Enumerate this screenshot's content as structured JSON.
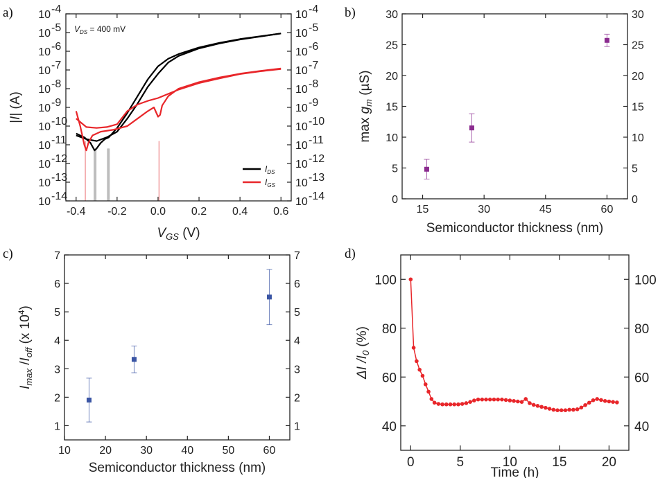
{
  "colors": {
    "ids": "#000000",
    "igs": "#e8262a",
    "gm": "#8b2b8f",
    "ratio": "#3a55a4",
    "decay": "#e8262a",
    "error_gray": "#bdbdbd",
    "error_pink": "#f2a3a5"
  },
  "chart_data": [
    {
      "panel": "a)",
      "type": "line",
      "annotation": {
        "main": "V",
        "sub": "DS",
        "rest": " = 400 mV"
      },
      "xlabel": {
        "main": "V",
        "sub": "GS",
        "rest": " (V)"
      },
      "ylabel": {
        "pre": "|",
        "main": "I",
        "post": "| (A)"
      },
      "xlim": [
        -0.45,
        0.65
      ],
      "ylim": [
        -14,
        -4
      ],
      "yscale": "log",
      "xticks": [
        "-0.4",
        "-0.2",
        "0.0",
        "0.2",
        "0.4",
        "0.6"
      ],
      "xtick_values": [
        -0.4,
        -0.2,
        0.0,
        0.2,
        0.4,
        0.6
      ],
      "ytick_mantissa": "10",
      "ytick_exponents": [
        "-4",
        "-5",
        "-6",
        "-7",
        "-8",
        "-9",
        "-10",
        "-11",
        "-12",
        "-13",
        "-14"
      ],
      "ytick_values": [
        -4,
        -5,
        -6,
        -7,
        -8,
        -9,
        -10,
        -11,
        -12,
        -13,
        -14
      ],
      "legend": {
        "position": "bottom-right",
        "entries": [
          {
            "main": "I",
            "sub": "DS"
          },
          {
            "main": "I",
            "sub": "GS"
          }
        ]
      },
      "series": [
        {
          "name": "I_DS (forward)",
          "x": [
            -0.4,
            -0.36,
            -0.33,
            -0.31,
            -0.3,
            -0.28,
            -0.26,
            -0.24,
            -0.2,
            -0.15,
            -0.1,
            -0.05,
            0.0,
            0.05,
            0.1,
            0.2,
            0.3,
            0.4,
            0.5,
            0.6
          ],
          "y": [
            -10.4,
            -10.6,
            -10.9,
            -11.3,
            -11.2,
            -10.9,
            -10.7,
            -10.6,
            -10.1,
            -9.3,
            -8.4,
            -7.5,
            -6.8,
            -6.4,
            -6.15,
            -5.8,
            -5.55,
            -5.35,
            -5.2,
            -5.05
          ]
        },
        {
          "name": "I_DS (reverse)",
          "x": [
            -0.4,
            -0.35,
            -0.3,
            -0.25,
            -0.2,
            -0.15,
            -0.1,
            -0.05,
            0.0,
            0.05,
            0.1,
            0.2,
            0.3,
            0.4,
            0.5,
            0.6
          ],
          "y": [
            -10.5,
            -10.7,
            -10.8,
            -10.6,
            -10.3,
            -9.6,
            -8.8,
            -7.9,
            -7.2,
            -6.6,
            -6.25,
            -5.85,
            -5.58,
            -5.37,
            -5.21,
            -5.05
          ]
        },
        {
          "name": "I_GS (forward)",
          "x": [
            -0.4,
            -0.38,
            -0.36,
            -0.35,
            -0.34,
            -0.32,
            -0.28,
            -0.22,
            -0.15,
            -0.1,
            -0.05,
            -0.02,
            0.0,
            0.01,
            0.02,
            0.05,
            0.1,
            0.2,
            0.3,
            0.4,
            0.5,
            0.6
          ],
          "y": [
            -9.2,
            -10.0,
            -11.0,
            -11.3,
            -10.9,
            -10.5,
            -10.3,
            -10.2,
            -10.0,
            -9.6,
            -9.2,
            -9.0,
            -9.5,
            -9.4,
            -8.9,
            -8.4,
            -8.0,
            -7.65,
            -7.4,
            -7.2,
            -7.05,
            -6.92
          ]
        },
        {
          "name": "I_GS (reverse)",
          "x": [
            -0.4,
            -0.35,
            -0.3,
            -0.25,
            -0.2,
            -0.15,
            -0.1,
            -0.05,
            0.0,
            0.1,
            0.2,
            0.3,
            0.4,
            0.5,
            0.6
          ],
          "y": [
            -9.6,
            -10.05,
            -10.1,
            -10.05,
            -9.9,
            -9.2,
            -8.85,
            -8.65,
            -8.5,
            -8.05,
            -7.7,
            -7.45,
            -7.22,
            -7.07,
            -6.95
          ]
        }
      ]
    },
    {
      "panel": "b)",
      "type": "scatter",
      "xlabel": "Semiconductor thickness (nm)",
      "ylabel": {
        "pre": "max ",
        "main": "g",
        "sub": "m",
        "post": "  (µS)"
      },
      "xlim": [
        10,
        65
      ],
      "ylim": [
        0,
        30
      ],
      "xticks": [
        "15",
        "30",
        "45",
        "60"
      ],
      "xtick_values": [
        15,
        30,
        45,
        60
      ],
      "yticks": [
        "0",
        "5",
        "10",
        "15",
        "20",
        "25",
        "30"
      ],
      "ytick_values": [
        0,
        5,
        10,
        15,
        20,
        25,
        30
      ],
      "x": [
        16,
        27,
        60
      ],
      "y": [
        4.8,
        11.5,
        25.7
      ],
      "yerr": [
        1.6,
        2.3,
        1.0
      ]
    },
    {
      "panel": "c)",
      "type": "scatter",
      "xlabel": "Semiconductor thickness (nm)",
      "ylabel": {
        "main": "I",
        "sub": "max",
        "mid": " /",
        "main2": "I",
        "sub2": "off",
        "rest": " (x 10",
        "sup": "4",
        "end": ")"
      },
      "xlim": [
        10,
        65
      ],
      "ylim": [
        0.5,
        7
      ],
      "xticks": [
        "10",
        "20",
        "30",
        "40",
        "50",
        "60"
      ],
      "xtick_values": [
        10,
        20,
        30,
        40,
        50,
        60
      ],
      "yticks": [
        "1",
        "2",
        "3",
        "4",
        "5",
        "6",
        "7"
      ],
      "ytick_values": [
        1,
        2,
        3,
        4,
        5,
        6,
        7
      ],
      "x": [
        16,
        27,
        60
      ],
      "y": [
        1.9,
        3.33,
        5.52
      ],
      "yerr": [
        0.77,
        0.47,
        0.97
      ]
    },
    {
      "panel": "d)",
      "type": "line",
      "xlabel": "Time (h)",
      "ylabel": {
        "main": "ΔI /I",
        "sub": "0",
        "rest": " (%)"
      },
      "xlim": [
        -1,
        22
      ],
      "ylim": [
        30,
        110
      ],
      "xticks": [
        "0",
        "5",
        "10",
        "15",
        "20"
      ],
      "xtick_values": [
        0,
        5,
        10,
        15,
        20
      ],
      "yticks": [
        "40",
        "60",
        "80",
        "100"
      ],
      "ytick_values": [
        40,
        60,
        80,
        100
      ],
      "x": [
        0,
        0.3,
        0.6,
        0.9,
        1.2,
        1.5,
        1.8,
        2.1,
        2.4,
        2.8,
        3.2,
        3.6,
        4.0,
        4.4,
        4.8,
        5.2,
        5.6,
        6.0,
        6.4,
        6.8,
        7.2,
        7.6,
        8.0,
        8.4,
        8.8,
        9.2,
        9.6,
        10.0,
        10.4,
        10.8,
        11.2,
        11.6,
        12.0,
        12.4,
        12.8,
        13.2,
        13.6,
        14.0,
        14.4,
        14.8,
        15.2,
        15.6,
        16.0,
        16.4,
        16.8,
        17.2,
        17.6,
        18.0,
        18.4,
        18.8,
        19.2,
        19.6,
        20.0,
        20.4,
        20.8
      ],
      "y": [
        100,
        72,
        66.5,
        63,
        60.5,
        57,
        54,
        51,
        49.5,
        49,
        48.8,
        48.8,
        48.8,
        48.8,
        48.8,
        49,
        49.3,
        49.8,
        50.4,
        50.8,
        50.8,
        50.8,
        50.8,
        50.8,
        50.8,
        50.8,
        50.6,
        50.4,
        50.2,
        50.0,
        49.8,
        51,
        49.3,
        48.6,
        48.2,
        47.8,
        47.4,
        47.0,
        46.6,
        46.4,
        46.4,
        46.4,
        46.6,
        46.6,
        46.8,
        47.5,
        48.5,
        49.5,
        50.5,
        51,
        50.6,
        50.2,
        50.0,
        49.8,
        49.6
      ]
    }
  ]
}
